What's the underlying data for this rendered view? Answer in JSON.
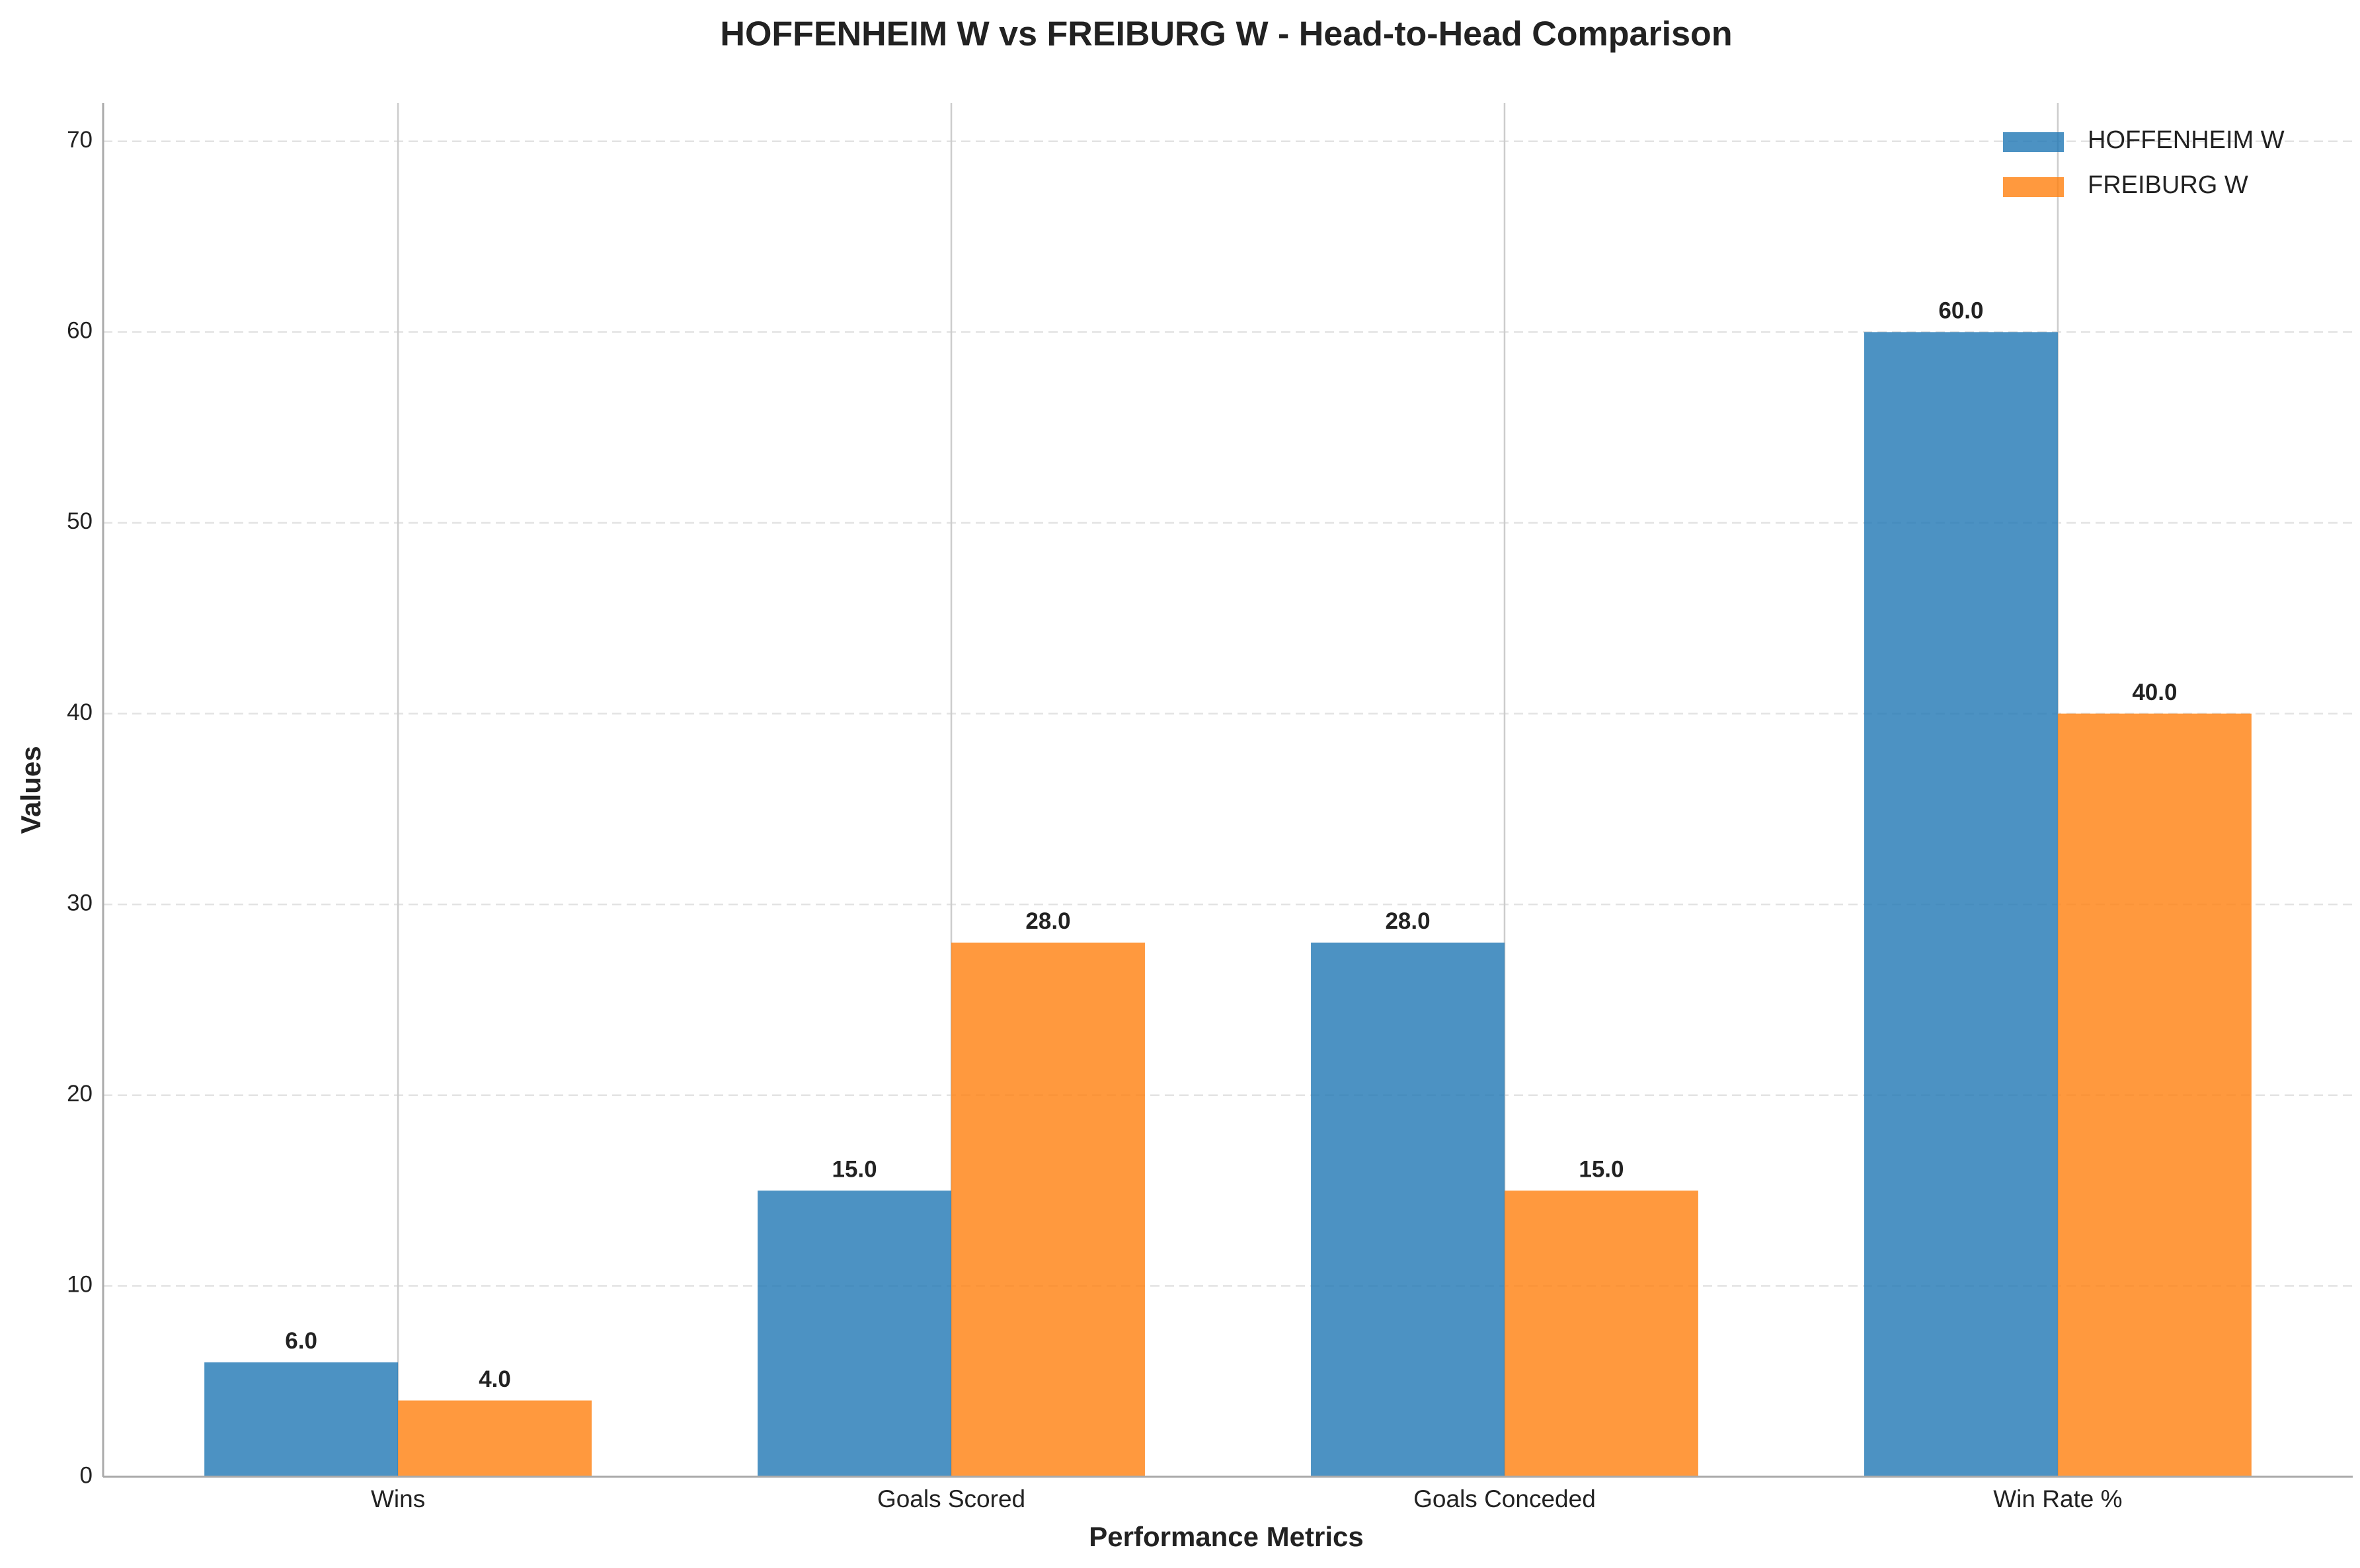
{
  "chart_data": {
    "type": "bar",
    "title": "HOFFENHEIM W vs FREIBURG W - Head-to-Head Comparison",
    "x_label": "Performance Metrics",
    "y_label": "Values",
    "categories": [
      "Wins",
      "Goals Scored",
      "Goals Conceded",
      "Win Rate %"
    ],
    "series": [
      {
        "name": "HOFFENHEIM W",
        "color": "#1f77b4",
        "values": [
          6,
          15,
          28,
          60
        ],
        "value_labels": [
          "6.0",
          "15.0",
          "28.0",
          "60.0"
        ]
      },
      {
        "name": "FREIBURG W",
        "color": "#ff7f0e",
        "values": [
          4,
          28,
          15,
          40
        ],
        "value_labels": [
          "4.0",
          "28.0",
          "15.0",
          "40.0"
        ]
      }
    ],
    "ylim": [
      0,
      72
    ],
    "yticks": [
      0,
      10,
      20,
      30,
      40,
      50,
      60,
      70
    ],
    "grid": true,
    "legend": "upper right"
  }
}
